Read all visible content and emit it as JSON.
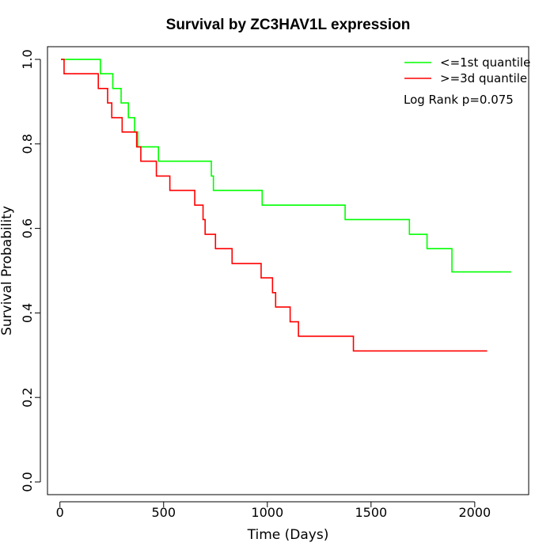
{
  "chart_data": {
    "type": "line",
    "title": "Survival by ZC3HAV1L expression",
    "xlabel": "Time (Days)",
    "ylabel": "Survival Probability",
    "xlim": [
      -60,
      2260
    ],
    "ylim": [
      -0.03,
      1.03
    ],
    "x_ticks": [
      0,
      500,
      1000,
      1500,
      2000
    ],
    "y_ticks": [
      0.0,
      0.2,
      0.4,
      0.6,
      0.8,
      1.0
    ],
    "x_tick_labels": [
      "0",
      "500",
      "1000",
      "1500",
      "2000"
    ],
    "y_tick_labels": [
      "0.0",
      "0.2",
      "0.4",
      "0.6",
      "0.8",
      "1.0"
    ],
    "grid": false,
    "legend_position": "top-right",
    "annotation": "Log Rank p=0.075",
    "series": [
      {
        "name": "<=1st quantile",
        "color": "#00ff00",
        "x": [
          5,
          195,
          255,
          295,
          330,
          360,
          375,
          475,
          730,
          740,
          975,
          1375,
          1685,
          1770,
          1890,
          2175
        ],
        "y": [
          1.0,
          0.966,
          0.931,
          0.897,
          0.862,
          0.828,
          0.793,
          0.759,
          0.724,
          0.69,
          0.655,
          0.621,
          0.586,
          0.552,
          0.497,
          0.497
        ]
      },
      {
        "name": ">=3d quantile",
        "color": "#ff0000",
        "x": [
          5,
          20,
          185,
          230,
          250,
          300,
          370,
          390,
          465,
          530,
          650,
          690,
          700,
          750,
          830,
          970,
          1025,
          1040,
          1110,
          1150,
          1415,
          2060
        ],
        "y": [
          1.0,
          0.966,
          0.931,
          0.897,
          0.862,
          0.828,
          0.793,
          0.759,
          0.724,
          0.69,
          0.655,
          0.621,
          0.586,
          0.552,
          0.517,
          0.483,
          0.448,
          0.414,
          0.379,
          0.345,
          0.31,
          0.31
        ]
      }
    ]
  }
}
